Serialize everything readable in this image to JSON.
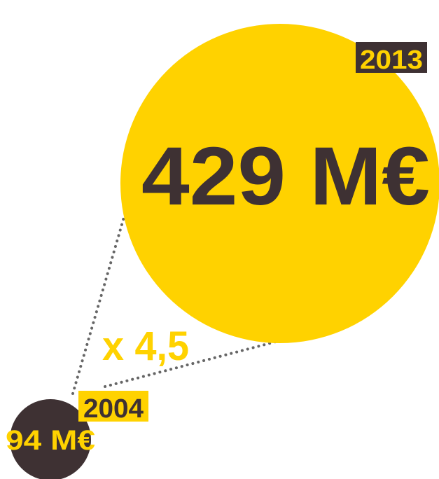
{
  "items": [
    {
      "year": "2004",
      "value": "94 M€"
    },
    {
      "year": "2013",
      "value": "429 M€"
    }
  ],
  "ratio": "x 4,5"
}
